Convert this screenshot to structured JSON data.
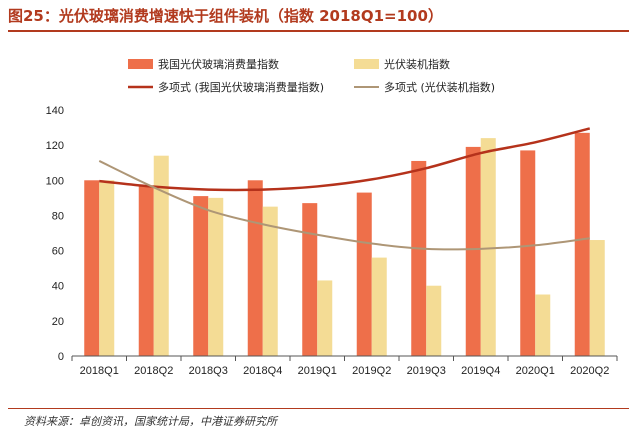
{
  "title": "图25：光伏玻璃消费增速快于组件装机（指数 2018Q1=100）",
  "source": "资料来源：卓创资讯，国家统计局，中港证券研究所",
  "chart_data": {
    "type": "bar",
    "categories": [
      "2018Q1",
      "2018Q2",
      "2018Q3",
      "2018Q4",
      "2019Q1",
      "2019Q2",
      "2019Q3",
      "2019Q4",
      "2020Q1",
      "2020Q2"
    ],
    "series": [
      {
        "name": "我国光伏玻璃消费量指数",
        "color": "#ee6f4a",
        "values": [
          100,
          97,
          91,
          100,
          87,
          93,
          111,
          119,
          117,
          127
        ]
      },
      {
        "name": "光伏装机指数",
        "color": "#f4dc95",
        "values": [
          100,
          114,
          90,
          85,
          43,
          56,
          40,
          124,
          35,
          66
        ]
      }
    ],
    "trendlines": [
      {
        "name": "多项式 (我国光伏玻璃消费量指数)",
        "color": "#b5321b",
        "values": [
          99.5,
          96.4,
          94.7,
          94.7,
          96.5,
          100.5,
          106.9,
          115.5,
          121.6,
          129.5
        ]
      },
      {
        "name": "多项式 (光伏装机指数)",
        "color": "#ae9676",
        "values": [
          111,
          96,
          83,
          75,
          69,
          64,
          61,
          61,
          63,
          67
        ]
      }
    ],
    "ylim": [
      0,
      140
    ],
    "yticks": [
      0,
      20,
      40,
      60,
      80,
      100,
      120,
      140
    ],
    "legend_position": "top",
    "grid": false
  }
}
